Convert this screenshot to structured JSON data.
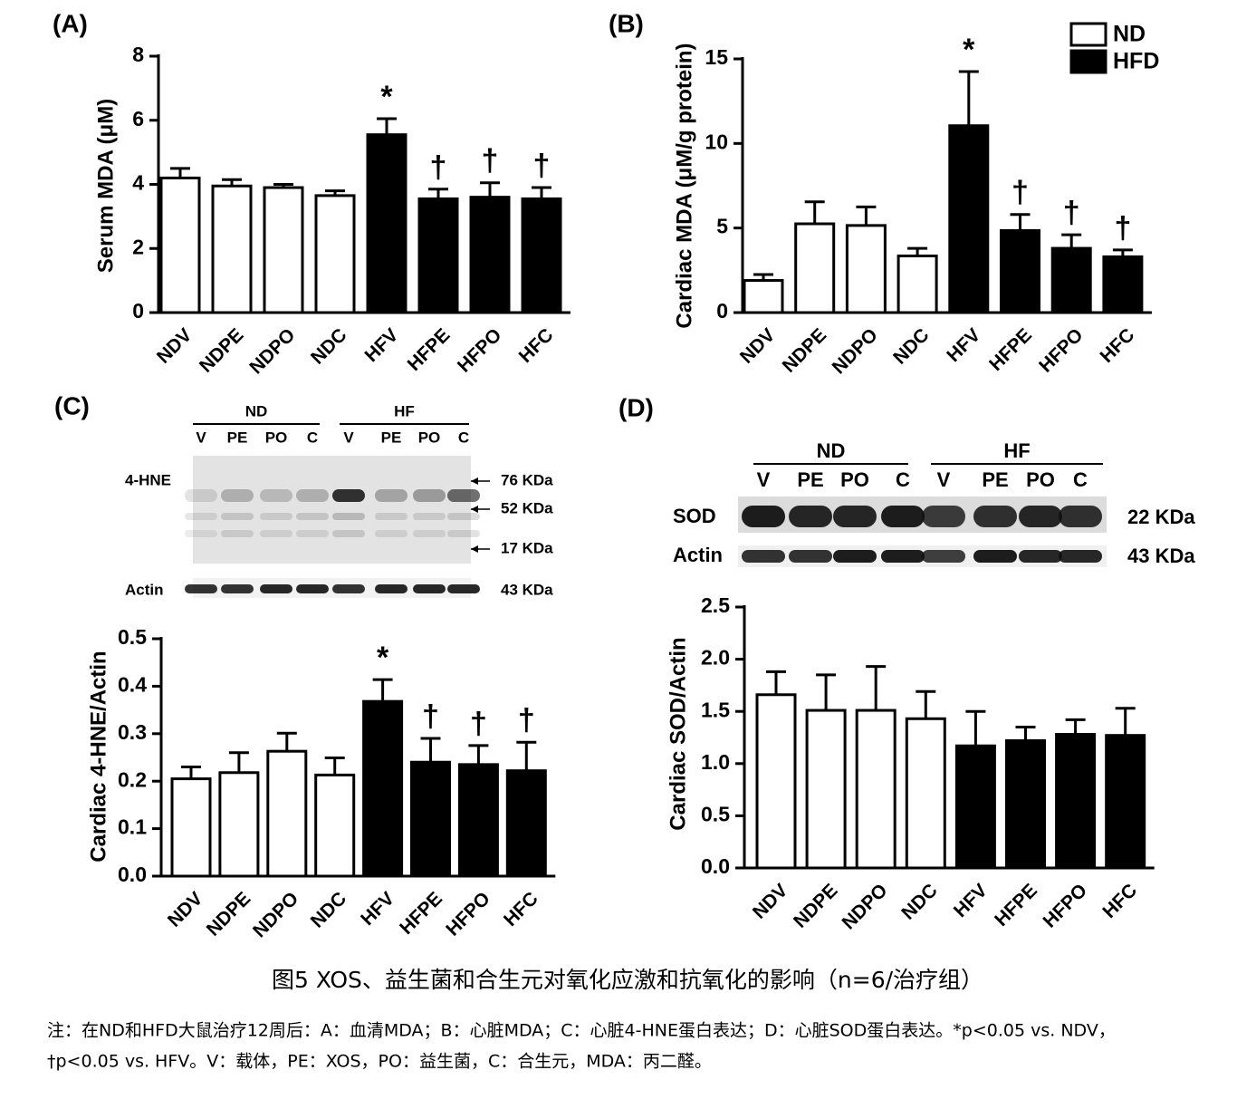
{
  "chart_data": [
    {
      "type": "bar",
      "panel_label": "(A)",
      "ylabel": "Serum MDA (μM)",
      "categories": [
        "NDV",
        "NDPE",
        "NDPO",
        "NDC",
        "HFV",
        "HFPE",
        "HFPO",
        "HFC"
      ],
      "series": [
        {
          "color": "#ffffff",
          "values": [
            4.2,
            3.95,
            3.9,
            3.65,
            null,
            null,
            null,
            null
          ],
          "errors": [
            0.3,
            0.2,
            0.1,
            0.15,
            null,
            null,
            null,
            null
          ]
        },
        {
          "color": "#000000",
          "values": [
            null,
            null,
            null,
            null,
            5.55,
            3.55,
            3.6,
            3.55
          ],
          "errors": [
            null,
            null,
            null,
            null,
            0.5,
            0.3,
            0.45,
            0.35
          ]
        }
      ],
      "markers": [
        null,
        null,
        null,
        null,
        "*",
        "†",
        "†",
        "†"
      ],
      "ylim": [
        0,
        8
      ],
      "yticks": [
        0,
        2,
        4,
        6,
        8
      ]
    },
    {
      "type": "bar",
      "panel_label": "(B)",
      "ylabel": "Cardiac MDA (μM/g protein)",
      "categories": [
        "NDV",
        "NDPE",
        "NDPO",
        "NDC",
        "HFV",
        "HFPE",
        "HFPO",
        "HFC"
      ],
      "series": [
        {
          "name": "ND",
          "color": "#ffffff",
          "values": [
            1.9,
            5.25,
            5.15,
            3.35,
            null,
            null,
            null,
            null
          ],
          "errors": [
            0.35,
            1.3,
            1.1,
            0.45,
            null,
            null,
            null,
            null
          ]
        },
        {
          "name": "HFD",
          "color": "#000000",
          "values": [
            null,
            null,
            null,
            null,
            11.05,
            4.85,
            3.8,
            3.3
          ],
          "errors": [
            null,
            null,
            null,
            null,
            3.2,
            0.95,
            0.8,
            0.4
          ]
        }
      ],
      "markers": [
        null,
        null,
        null,
        null,
        "*",
        "†",
        "†",
        "†"
      ],
      "legend": "top-right",
      "ylim": [
        0,
        15
      ],
      "yticks": [
        0,
        5,
        10,
        15
      ]
    },
    {
      "type": "bar",
      "panel_label": "(C)",
      "ylabel": "Cardiac 4-HNE/Actin",
      "categories": [
        "NDV",
        "NDPE",
        "NDPO",
        "NDC",
        "HFV",
        "HFPE",
        "HFPO",
        "HFC"
      ],
      "series": [
        {
          "color": "#ffffff",
          "values": [
            0.205,
            0.218,
            0.263,
            0.213,
            null,
            null,
            null,
            null
          ],
          "errors": [
            0.025,
            0.042,
            0.038,
            0.036,
            null,
            null,
            null,
            null
          ]
        },
        {
          "color": "#000000",
          "values": [
            null,
            null,
            null,
            null,
            0.368,
            0.24,
            0.235,
            0.222
          ],
          "errors": [
            null,
            null,
            null,
            null,
            0.046,
            0.05,
            0.04,
            0.06
          ]
        }
      ],
      "markers": [
        null,
        null,
        null,
        null,
        "*",
        "†",
        "†",
        "†"
      ],
      "ylim": [
        0,
        0.5
      ],
      "yticks": [
        {
          "value": 0,
          "label": "0.0"
        },
        0.1,
        0.2,
        0.3,
        0.4,
        0.5
      ]
    },
    {
      "type": "bar",
      "panel_label": "(D)",
      "ylabel": "Cardiac SOD/Actin",
      "categories": [
        "NDV",
        "NDPE",
        "NDPO",
        "NDC",
        "HFV",
        "HFPE",
        "HFPO",
        "HFC"
      ],
      "series": [
        {
          "color": "#ffffff",
          "values": [
            1.66,
            1.51,
            1.51,
            1.43,
            null,
            null,
            null,
            null
          ],
          "errors": [
            0.22,
            0.34,
            0.42,
            0.26,
            null,
            null,
            null,
            null
          ]
        },
        {
          "color": "#000000",
          "values": [
            null,
            null,
            null,
            null,
            1.17,
            1.22,
            1.28,
            1.27
          ],
          "errors": [
            null,
            null,
            null,
            null,
            0.33,
            0.13,
            0.14,
            0.26
          ]
        }
      ],
      "ylim": [
        0,
        2.5
      ],
      "yticks": [
        {
          "value": 0,
          "label": "0.0"
        },
        0.5,
        {
          "value": 1,
          "label": "1.0"
        },
        1.5,
        {
          "value": 2,
          "label": "2.0"
        },
        2.5
      ]
    }
  ],
  "blots": [
    {
      "groups": [
        "ND",
        "HF"
      ],
      "lanes": [
        "V",
        "PE",
        "PO",
        "C",
        "V",
        "PE",
        "PO",
        "C"
      ],
      "rows": [
        {
          "label": "4-HNE",
          "markers": [
            "76 KDa",
            "52 KDa",
            "17 KDa"
          ]
        },
        {
          "label": "Actin",
          "markers": [
            "43 KDa"
          ]
        }
      ]
    },
    {
      "groups": [
        "ND",
        "HF"
      ],
      "lanes": [
        "V",
        "PE",
        "PO",
        "C",
        "V",
        "PE",
        "PO",
        "C"
      ],
      "rows": [
        {
          "label": "SOD",
          "markers": [
            "22 KDa"
          ]
        },
        {
          "label": "Actin",
          "markers": [
            "43 KDa"
          ]
        }
      ]
    }
  ],
  "caption": {
    "title": "图5 XOS、益生菌和合生元对氧化应激和抗氧化的影响（n=6/治疗组）",
    "notes": [
      "注：在ND和HFD大鼠治疗12周后：A：血清MDA；B：心脏MDA；C：心脏4-HNE蛋白表达；D：心脏SOD蛋白表达。*p<0.05 vs. NDV，",
      "†p<0.05 vs. HFV。V：载体，PE：XOS，PO：益生菌，C：合生元，MDA：丙二醛。"
    ]
  }
}
